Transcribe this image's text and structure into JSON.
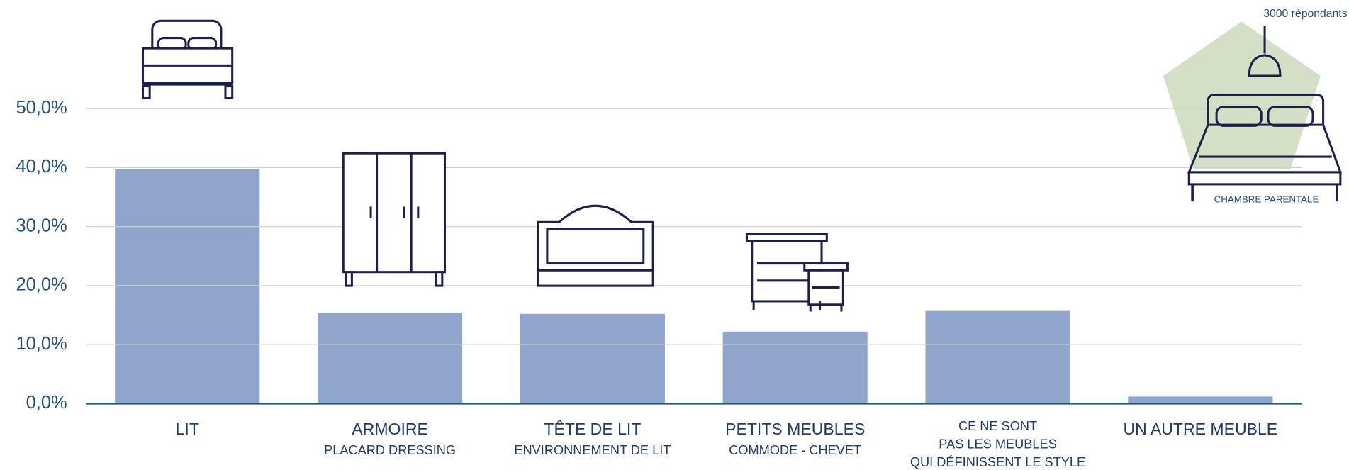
{
  "chart_data": {
    "type": "bar",
    "categories": [
      "LIT",
      "ARMOIRE",
      "TÊTE DE LIT",
      "PETITS MEUBLES",
      "CE NE SONT",
      "UN AUTRE MEUBLE"
    ],
    "category_sublabels": [
      [],
      [
        "PLACARD DRESSING"
      ],
      [
        "ENVIRONNEMENT DE LIT"
      ],
      [
        "COMMODE - CHEVET"
      ],
      [
        "PAS LES MEUBLES",
        "QUI DÉFINISSENT LE STYLE"
      ],
      []
    ],
    "values": [
      39.7,
      15.4,
      15.2,
      12.2,
      15.7,
      1.2
    ],
    "color": "#8fa5cb",
    "ylim": [
      0,
      50
    ],
    "yticks": [
      {
        "value": 0,
        "label": "0,0%"
      },
      {
        "value": 10,
        "label": "10,0%"
      },
      {
        "value": 20,
        "label": "20,0%"
      },
      {
        "value": 30,
        "label": "30,0%"
      },
      {
        "value": 40,
        "label": "40,0%"
      },
      {
        "value": 50,
        "label": "50,0%"
      }
    ],
    "grid": true,
    "annotations": [
      "3000 répondants",
      "CHAMBRE PARENTALE"
    ]
  }
}
